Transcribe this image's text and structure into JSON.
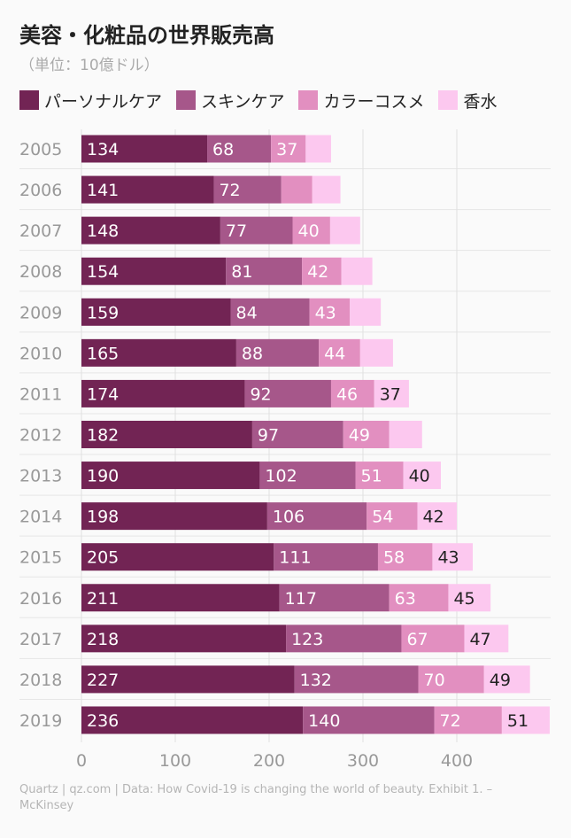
{
  "chart_data": {
    "type": "bar",
    "orientation": "horizontal",
    "stacked": true,
    "title": "美容・化粧品の世界販売高",
    "subtitle": "（単位：10億ドル）",
    "categories": [
      "2005",
      "2006",
      "2007",
      "2008",
      "2009",
      "2010",
      "2011",
      "2012",
      "2013",
      "2014",
      "2015",
      "2016",
      "2017",
      "2018",
      "2019"
    ],
    "series": [
      {
        "name": "パーソナルケア",
        "color": "#722454",
        "label_color": "#ffffff",
        "values": [
          134,
          141,
          148,
          154,
          159,
          165,
          174,
          182,
          190,
          198,
          205,
          211,
          218,
          227,
          236
        ],
        "labels": [
          "134",
          "141",
          "148",
          "154",
          "159",
          "165",
          "174",
          "182",
          "190",
          "198",
          "205",
          "211",
          "218",
          "227",
          "236"
        ]
      },
      {
        "name": "スキンケア",
        "color": "#a6578a",
        "label_color": "#ffffff",
        "values": [
          68,
          72,
          77,
          81,
          84,
          88,
          92,
          97,
          102,
          106,
          111,
          117,
          123,
          132,
          140
        ],
        "labels": [
          "68",
          "72",
          "77",
          "81",
          "84",
          "88",
          "92",
          "97",
          "102",
          "106",
          "111",
          "117",
          "123",
          "132",
          "140"
        ]
      },
      {
        "name": "カラーコスメ",
        "color": "#e28fc0",
        "label_color": "#ffffff",
        "values": [
          37,
          33,
          40,
          42,
          43,
          44,
          46,
          49,
          51,
          54,
          58,
          63,
          67,
          70,
          72
        ],
        "labels": [
          "37",
          "",
          "40",
          "42",
          "43",
          "44",
          "46",
          "49",
          "51",
          "54",
          "58",
          "63",
          "67",
          "70",
          "72"
        ]
      },
      {
        "name": "香水",
        "color": "#fcc8ef",
        "label_color": "#222222",
        "values": [
          27,
          30,
          32,
          33,
          33,
          35,
          37,
          35,
          40,
          42,
          43,
          45,
          47,
          49,
          51
        ],
        "labels": [
          "",
          "",
          "",
          "",
          "",
          "",
          "37",
          "",
          "40",
          "42",
          "43",
          "45",
          "47",
          "49",
          "51"
        ]
      }
    ],
    "xlabel": "",
    "ylabel": "",
    "xlim": [
      0,
      500
    ],
    "xticks": [
      0,
      100,
      200,
      300,
      400
    ],
    "grid": true
  },
  "source": "Quartz | qz.com | Data: How Covid-19 is changing the world of beauty. Exhibit 1. – McKinsey"
}
